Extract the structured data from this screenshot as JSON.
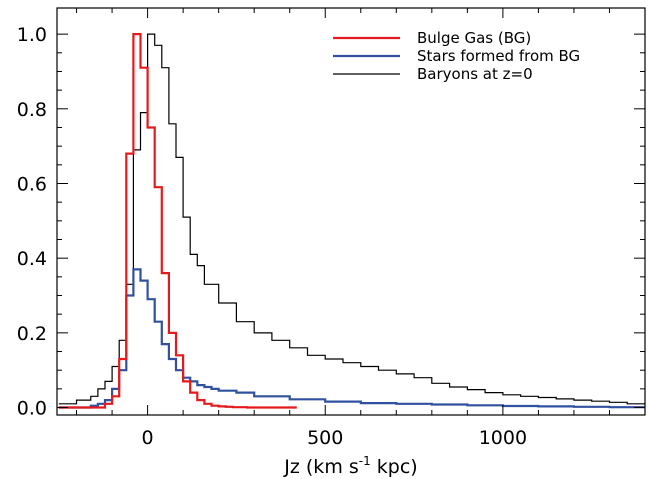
{
  "chart_data": {
    "type": "line",
    "title": "",
    "xlabel": "Jz (km s",
    "xlabel_sup": "-1",
    "xlabel_tail": " kpc)",
    "ylabel": "",
    "xlim": [
      -255,
      1400
    ],
    "ylim": [
      -0.02,
      1.07
    ],
    "step": "histogram",
    "xticks": [
      0,
      500,
      1000
    ],
    "xtick_labels": [
      "0",
      "500",
      "1000"
    ],
    "yticks": [
      0.0,
      0.2,
      0.4,
      0.6,
      0.8,
      1.0
    ],
    "ytick_labels": [
      "0.0",
      "0.2",
      "0.4",
      "0.6",
      "0.8",
      "1.0"
    ],
    "legend_position": "top-right",
    "series": [
      {
        "name": "Bulge Gas (BG)",
        "color": "#e41a1c",
        "x": [
          -250,
          -220,
          -200,
          -180,
          -160,
          -140,
          -120,
          -100,
          -80,
          -60,
          -40,
          -20,
          0,
          20,
          40,
          60,
          80,
          100,
          120,
          140,
          160,
          180,
          200,
          220,
          240,
          260,
          280,
          300,
          320,
          340,
          360,
          380,
          400
        ],
        "y": [
          0.0,
          0.0,
          0.0,
          0.0,
          0.0,
          0.0,
          0.01,
          0.03,
          0.13,
          0.68,
          1.0,
          0.91,
          0.75,
          0.59,
          0.36,
          0.2,
          0.14,
          0.07,
          0.04,
          0.02,
          0.01,
          0.005,
          0.003,
          0.002,
          0.001,
          0.001,
          0.0,
          0.0,
          0.0,
          0.0,
          0.0,
          0.0,
          0.0
        ]
      },
      {
        "name": "Stars formed from BG",
        "color": "#3050a0",
        "x": [
          -250,
          -200,
          -160,
          -140,
          -120,
          -100,
          -80,
          -60,
          -40,
          -20,
          0,
          20,
          40,
          60,
          80,
          100,
          120,
          140,
          160,
          180,
          200,
          250,
          300,
          400,
          500,
          600,
          700,
          800,
          900,
          1000,
          1100,
          1200,
          1300,
          1400
        ],
        "y": [
          0.0,
          0.0,
          0.005,
          0.01,
          0.02,
          0.05,
          0.1,
          0.3,
          0.37,
          0.34,
          0.29,
          0.23,
          0.17,
          0.13,
          0.1,
          0.08,
          0.07,
          0.06,
          0.055,
          0.05,
          0.045,
          0.04,
          0.03,
          0.022,
          0.016,
          0.012,
          0.01,
          0.008,
          0.006,
          0.004,
          0.003,
          0.002,
          0.001,
          0.001
        ]
      },
      {
        "name": "Baryons at z=0",
        "color": "#000000",
        "x": [
          -250,
          -200,
          -160,
          -140,
          -120,
          -100,
          -80,
          -60,
          -40,
          -20,
          0,
          20,
          40,
          60,
          80,
          100,
          120,
          140,
          160,
          200,
          250,
          300,
          350,
          400,
          450,
          500,
          550,
          600,
          650,
          700,
          750,
          800,
          850,
          900,
          950,
          1000,
          1050,
          1100,
          1150,
          1200,
          1250,
          1300,
          1350,
          1400
        ],
        "y": [
          0.01,
          0.02,
          0.03,
          0.05,
          0.07,
          0.11,
          0.18,
          0.33,
          0.69,
          0.79,
          1.0,
          0.97,
          0.91,
          0.76,
          0.67,
          0.51,
          0.41,
          0.38,
          0.33,
          0.28,
          0.23,
          0.2,
          0.18,
          0.16,
          0.14,
          0.13,
          0.12,
          0.11,
          0.1,
          0.09,
          0.08,
          0.065,
          0.055,
          0.048,
          0.04,
          0.034,
          0.03,
          0.027,
          0.023,
          0.02,
          0.017,
          0.014,
          0.01,
          0.008
        ]
      }
    ]
  }
}
